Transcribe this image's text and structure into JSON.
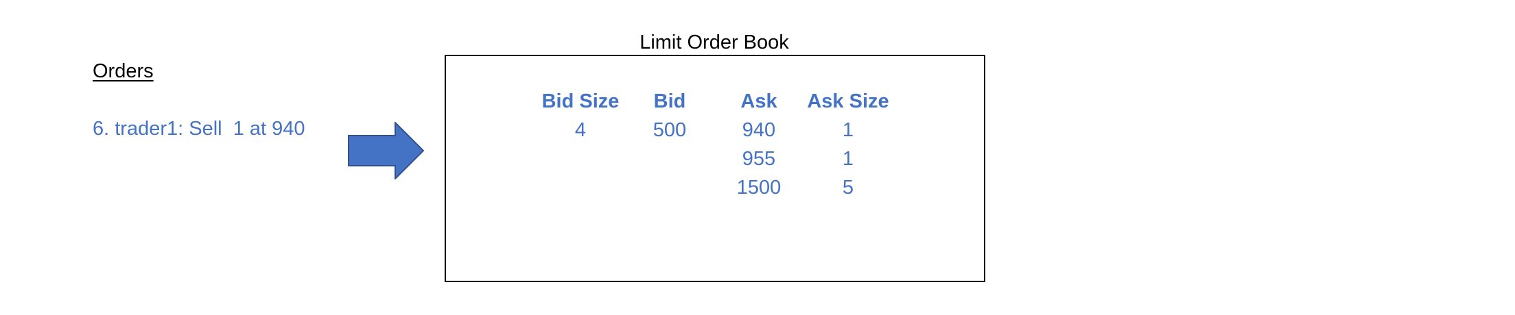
{
  "orders": {
    "heading": "Orders",
    "items": [
      {
        "text": "6. trader1: Sell  1 at 940"
      }
    ]
  },
  "arrow": {
    "icon": "right-arrow-icon",
    "color": "#4472C4"
  },
  "order_book": {
    "title": "Limit Order Book",
    "text_color": "#4472C4",
    "columns": {
      "bid_size": {
        "header": "Bid Size",
        "values": [
          "4",
          "",
          ""
        ]
      },
      "bid": {
        "header": "Bid",
        "values": [
          "500",
          "",
          ""
        ]
      },
      "ask": {
        "header": "Ask",
        "values": [
          "940",
          "955",
          "1500"
        ]
      },
      "ask_size": {
        "header": "Ask Size",
        "values": [
          "1",
          "1",
          "5"
        ]
      }
    }
  }
}
